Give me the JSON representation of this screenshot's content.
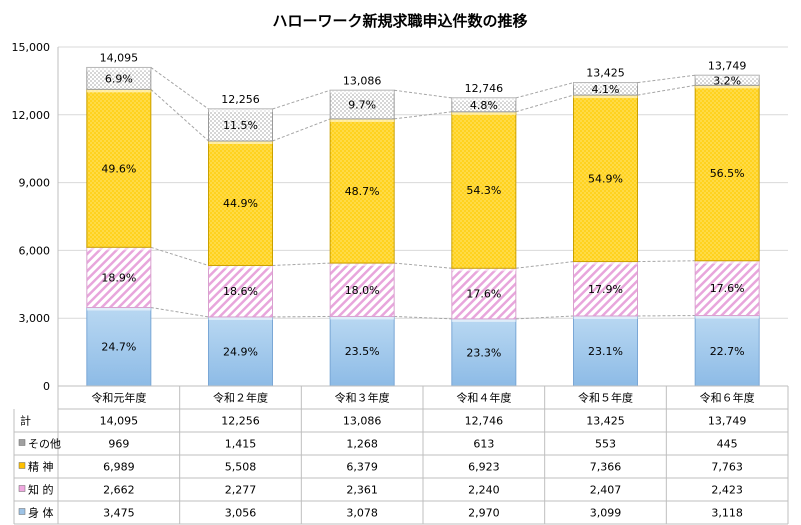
{
  "chart_data": {
    "type": "bar",
    "stacked": true,
    "title": "ハローワーク新規求職申込件数の推移",
    "categories": [
      "令和元年度",
      "令和２年度",
      "令和３年度",
      "令和４年度",
      "令和５年度",
      "令和６年度"
    ],
    "ylim": [
      0,
      15000
    ],
    "yticks": [
      "0",
      "3,000",
      "6,000",
      "9,000",
      "12,000",
      "15,000"
    ],
    "grid": true,
    "totals": [
      14095,
      12256,
      13086,
      12746,
      13425,
      13749
    ],
    "total_labels": [
      "14,095",
      "12,256",
      "13,086",
      "12,746",
      "13,425",
      "13,749"
    ],
    "series": [
      {
        "name": "身 体",
        "color": "#9dc3e6",
        "values": [
          3475,
          3056,
          3078,
          2970,
          3099,
          3118
        ],
        "percent_labels": [
          "24.7%",
          "24.9%",
          "23.5%",
          "23.3%",
          "23.1%",
          "22.7%"
        ],
        "table_values": [
          "3,475",
          "3,056",
          "3,078",
          "2,970",
          "3,099",
          "3,118"
        ]
      },
      {
        "name": "知 的",
        "color": "#f4c6ea",
        "values": [
          2662,
          2277,
          2361,
          2240,
          2407,
          2423
        ],
        "percent_labels": [
          "18.9%",
          "18.6%",
          "18.0%",
          "17.6%",
          "17.9%",
          "17.6%"
        ],
        "table_values": [
          "2,662",
          "2,277",
          "2,361",
          "2,240",
          "2,407",
          "2,423"
        ]
      },
      {
        "name": "精 神",
        "color": "#ffc000",
        "values": [
          6989,
          5508,
          6379,
          6923,
          7366,
          7763
        ],
        "percent_labels": [
          "49.6%",
          "44.9%",
          "48.7%",
          "54.3%",
          "54.9%",
          "56.5%"
        ],
        "table_values": [
          "6,989",
          "5,508",
          "6,379",
          "6,923",
          "7,366",
          "7,763"
        ]
      },
      {
        "name": "その他",
        "color": "#d0d0d0",
        "values": [
          969,
          1415,
          1268,
          613,
          553,
          445
        ],
        "percent_labels": [
          "6.9%",
          "11.5%",
          "9.7%",
          "4.8%",
          "4.1%",
          "3.2%"
        ],
        "table_values": [
          "969",
          "1,415",
          "1,268",
          "613",
          "553",
          "445"
        ]
      }
    ],
    "table": {
      "total_row_label": "計",
      "total_row_values": [
        "14,095",
        "12,256",
        "13,086",
        "12,746",
        "13,425",
        "13,749"
      ],
      "row_order": [
        "その他",
        "精 神",
        "知 的",
        "身 体"
      ]
    }
  }
}
